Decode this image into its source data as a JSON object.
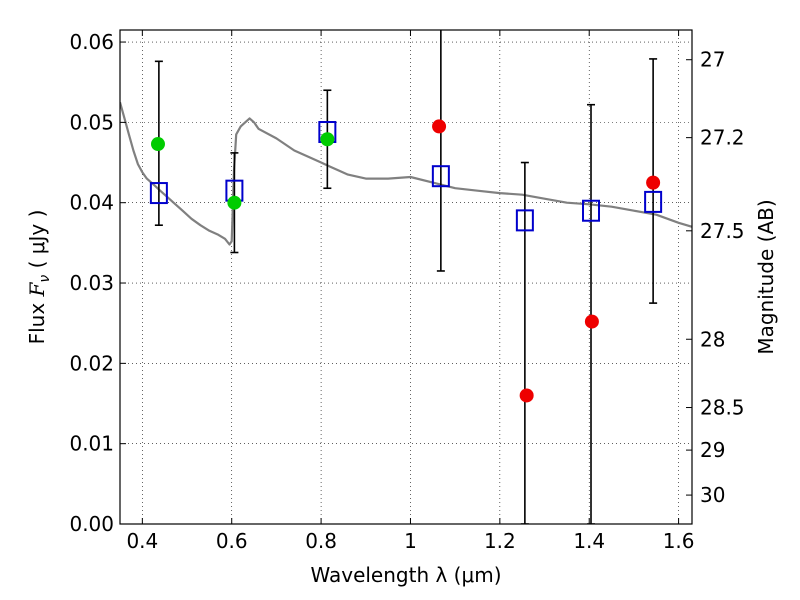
{
  "chart_data": {
    "type": "scatter",
    "xlabel": "Wavelength  λ (μm)",
    "ylabel_left_prefix": "Flux  ",
    "ylabel_left_symbol": "F",
    "ylabel_left_subscript": "ν",
    "ylabel_left_unit": "  ( μJy )",
    "ylabel_right": "Magnitude (AB)",
    "xlim": [
      0.35,
      1.63
    ],
    "ylim": [
      0.0,
      0.0615
    ],
    "grid": true,
    "x_ticks": [
      {
        "value": 0.4,
        "label": "0.4"
      },
      {
        "value": 0.6,
        "label": "0.6"
      },
      {
        "value": 0.8,
        "label": "0.8"
      },
      {
        "value": 1.0,
        "label": "1"
      },
      {
        "value": 1.2,
        "label": "1.2"
      },
      {
        "value": 1.4,
        "label": "1.4"
      },
      {
        "value": 1.6,
        "label": "1.6"
      }
    ],
    "y_ticks": [
      {
        "value": 0.0,
        "label": "0.00"
      },
      {
        "value": 0.01,
        "label": "0.01"
      },
      {
        "value": 0.02,
        "label": "0.02"
      },
      {
        "value": 0.03,
        "label": "0.03"
      },
      {
        "value": 0.04,
        "label": "0.04"
      },
      {
        "value": 0.05,
        "label": "0.05"
      },
      {
        "value": 0.06,
        "label": "0.06"
      }
    ],
    "right_ticks": [
      {
        "label": "27",
        "flux": 0.0578
      },
      {
        "label": "27.2",
        "flux": 0.0481
      },
      {
        "label": "27.5",
        "flux": 0.0365
      },
      {
        "label": "28",
        "flux": 0.023
      },
      {
        "label": "28.5",
        "flux": 0.0145
      },
      {
        "label": "29",
        "flux": 0.0092
      },
      {
        "label": "30",
        "flux": 0.0036
      }
    ],
    "series": [
      {
        "kind": "line",
        "color": "#808080",
        "x": [
          0.35,
          0.36,
          0.37,
          0.38,
          0.39,
          0.4,
          0.41,
          0.42,
          0.43,
          0.44,
          0.45,
          0.47,
          0.49,
          0.51,
          0.53,
          0.55,
          0.57,
          0.585,
          0.595,
          0.6,
          0.605,
          0.61,
          0.62,
          0.63,
          0.64,
          0.65,
          0.66,
          0.7,
          0.74,
          0.78,
          0.8,
          0.82,
          0.84,
          0.86,
          0.9,
          0.95,
          1.0,
          1.05,
          1.1,
          1.15,
          1.2,
          1.25,
          1.3,
          1.35,
          1.4,
          1.45,
          1.5,
          1.55,
          1.6,
          1.63
        ],
        "y": [
          0.0525,
          0.0505,
          0.0485,
          0.0465,
          0.0448,
          0.0438,
          0.043,
          0.0425,
          0.042,
          0.0415,
          0.041,
          0.04,
          0.039,
          0.038,
          0.0372,
          0.0365,
          0.036,
          0.0355,
          0.0348,
          0.0352,
          0.044,
          0.0485,
          0.0495,
          0.05,
          0.0505,
          0.05,
          0.0492,
          0.048,
          0.0465,
          0.0455,
          0.045,
          0.0445,
          0.044,
          0.0435,
          0.043,
          0.043,
          0.0432,
          0.0425,
          0.0418,
          0.0415,
          0.0412,
          0.041,
          0.0405,
          0.04,
          0.0398,
          0.0395,
          0.039,
          0.0385,
          0.0375,
          0.037
        ]
      },
      {
        "kind": "marker",
        "marker": "square",
        "color": "#0000cc",
        "x": [
          0.437,
          0.606,
          0.814,
          1.068,
          1.256,
          1.404,
          1.543
        ],
        "y": [
          0.0412,
          0.0415,
          0.0488,
          0.0433,
          0.0378,
          0.039,
          0.0401
        ],
        "yerr_low": [
          0.0372,
          0.0338,
          0.0418,
          0.0315,
          0.0,
          0.0,
          0.0275
        ],
        "yerr_high": [
          0.0576,
          0.0462,
          0.054,
          0.0625,
          0.045,
          0.0522,
          0.0579
        ]
      },
      {
        "kind": "marker",
        "marker": "circle",
        "color": "#00cc00",
        "x": [
          0.435,
          0.606,
          0.814
        ],
        "y": [
          0.0473,
          0.04,
          0.0479
        ]
      },
      {
        "kind": "marker",
        "marker": "circle",
        "color": "#ee0000",
        "x": [
          1.064,
          1.26,
          1.406,
          1.543
        ],
        "y": [
          0.0495,
          0.016,
          0.0252,
          0.0425
        ]
      }
    ]
  }
}
